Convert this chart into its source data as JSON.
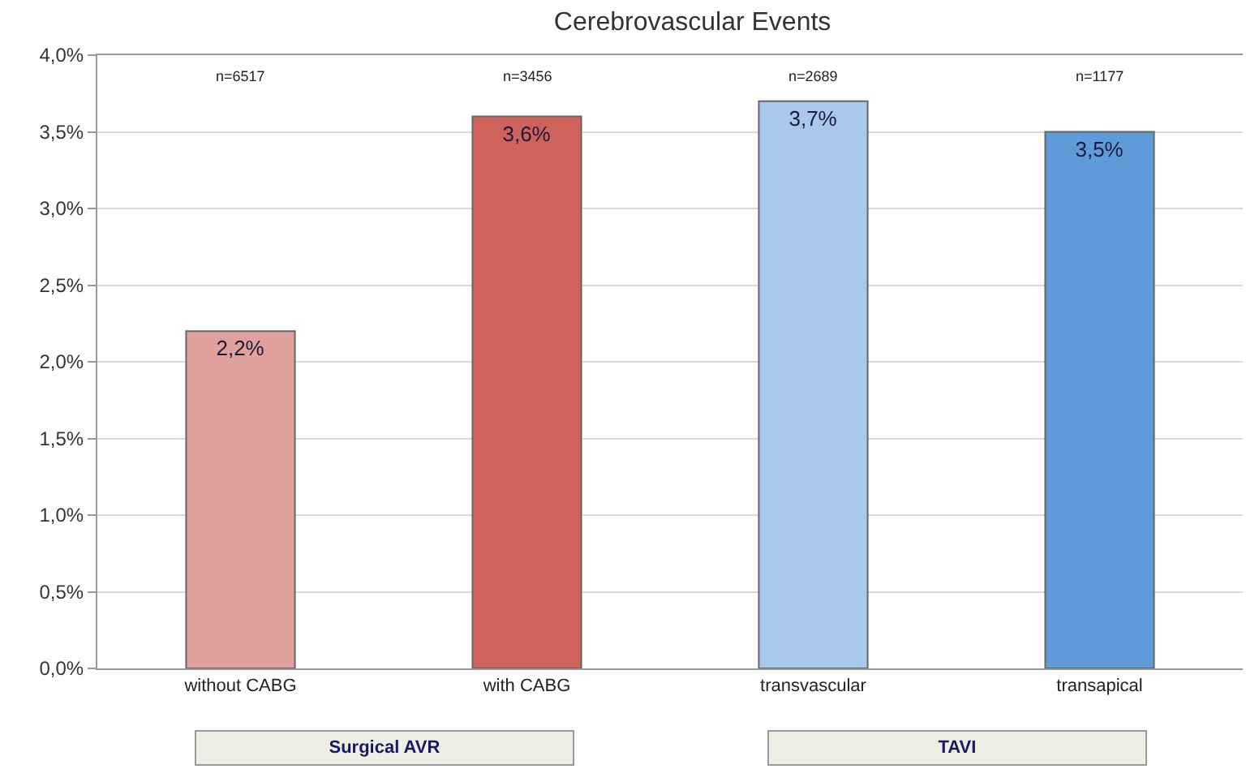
{
  "chart_data": {
    "type": "bar",
    "title": "Cerebrovascular Events",
    "categories": [
      "without CABG",
      "with CABG",
      "transvascular",
      "transapical"
    ],
    "values": [
      2.2,
      3.6,
      3.7,
      3.5
    ],
    "colors": [
      "#e0a19d",
      "#d0625c",
      "#a9c9ec",
      "#609bd9"
    ],
    "value_labels": [
      "2,2%",
      "3,6%",
      "3,7%",
      "3,5%"
    ],
    "ylim": [
      0,
      4
    ],
    "yticks": [
      {
        "value": 0,
        "label": "0,0%"
      },
      {
        "value": 0.5,
        "label": "0,5%"
      },
      {
        "value": 1,
        "label": "1,0%"
      },
      {
        "value": 1.5,
        "label": "1,5%"
      },
      {
        "value": 2,
        "label": "2,0%"
      },
      {
        "value": 2.5,
        "label": "2,5%"
      },
      {
        "value": 3,
        "label": "3,0%"
      },
      {
        "value": 3.5,
        "label": "3,5%"
      },
      {
        "value": 4,
        "label": "4,0%"
      }
    ],
    "grid": "y",
    "annotations": [
      "n=6517",
      "n=3456",
      "n=2689",
      "n=1177",
      "Surgical AVR",
      "TAVI"
    ]
  }
}
